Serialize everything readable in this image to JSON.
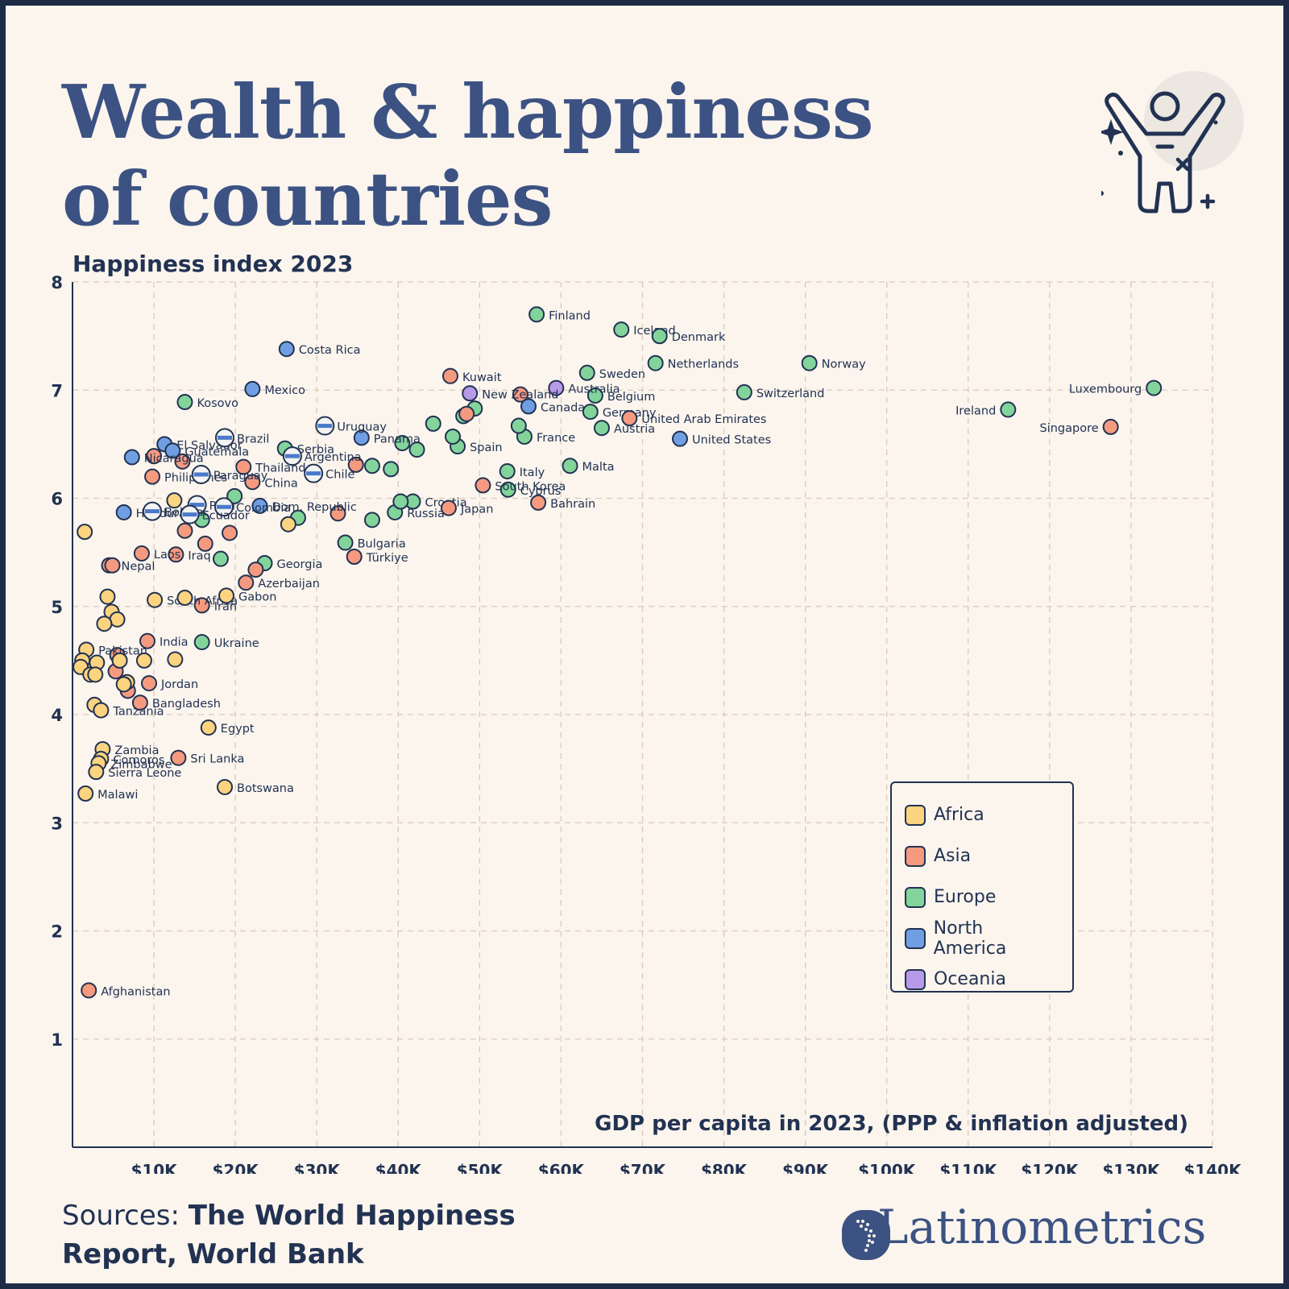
{
  "header": {
    "title_line1": "Wealth & happiness",
    "title_line2": "of countries"
  },
  "footer": {
    "sources_prefix": "Sources:",
    "sources_line1": "The World Happiness",
    "sources_line2": "Report, World Bank",
    "brand": "Latinometrics"
  },
  "icons": {
    "hero": "celebrating-person-icon",
    "logo": "latin-america-map-icon"
  },
  "colors": {
    "Africa": "#fcd37f",
    "Asia": "#f59a7f",
    "Europe": "#82d49b",
    "North America": "#6f9fe2",
    "Oceania": "#b79ae8",
    "outline": "#223252",
    "title": "#3c5283"
  },
  "chart_data": {
    "type": "scatter",
    "ylabel": "Happiness index 2023",
    "xlabel": "GDP per capita in 2023, (PPP & inflation adjusted)",
    "xlim": [
      0,
      140000
    ],
    "ylim": [
      0,
      8
    ],
    "xticks": [
      10000,
      20000,
      30000,
      40000,
      50000,
      60000,
      70000,
      80000,
      90000,
      100000,
      110000,
      120000,
      130000,
      140000
    ],
    "xtick_labels": [
      "$10K",
      "$20K",
      "$30K",
      "$40K",
      "$50K",
      "$60K",
      "$70K",
      "$80K",
      "$90K",
      "$100K",
      "$110K",
      "$120K",
      "$130K",
      "$140K"
    ],
    "yticks": [
      1,
      2,
      3,
      4,
      5,
      6,
      7,
      8
    ],
    "ytick_labels": [
      "1",
      "2",
      "3",
      "4",
      "5",
      "6",
      "7",
      "8"
    ],
    "grid": true,
    "legend_position": "bottom-right",
    "legend": [
      "Africa",
      "Asia",
      "Europe",
      "North America",
      "Oceania"
    ],
    "points": [
      {
        "label": "Finland",
        "x": 57000,
        "y": 7.7,
        "region": "Europe"
      },
      {
        "label": "Iceland",
        "x": 67400,
        "y": 7.56,
        "region": "Europe"
      },
      {
        "label": "Denmark",
        "x": 72100,
        "y": 7.5,
        "region": "Europe"
      },
      {
        "label": "Netherlands",
        "x": 71600,
        "y": 7.25,
        "region": "Europe"
      },
      {
        "label": "Norway",
        "x": 90500,
        "y": 7.25,
        "region": "Europe"
      },
      {
        "label": "Sweden",
        "x": 63200,
        "y": 7.16,
        "region": "Europe"
      },
      {
        "label": "Switzerland",
        "x": 82500,
        "y": 6.98,
        "region": "Europe"
      },
      {
        "label": "Luxembourg",
        "x": 132800,
        "y": 7.02,
        "region": "Europe"
      },
      {
        "label": "Belgium",
        "x": 64200,
        "y": 6.95,
        "region": "Europe"
      },
      {
        "label": "Germany",
        "x": 63600,
        "y": 6.8,
        "region": "Europe"
      },
      {
        "label": "Ireland",
        "x": 114900,
        "y": 6.82,
        "region": "Europe"
      },
      {
        "label": "Austria",
        "x": 65000,
        "y": 6.65,
        "region": "Europe"
      },
      {
        "label": "France",
        "x": 55500,
        "y": 6.57,
        "region": "Europe"
      },
      {
        "label": "Spain",
        "x": 47300,
        "y": 6.48,
        "region": "Europe"
      },
      {
        "label": "Italy",
        "x": 53400,
        "y": 6.25,
        "region": "Europe"
      },
      {
        "label": "Malta",
        "x": 61100,
        "y": 6.3,
        "region": "Europe"
      },
      {
        "label": "Cyprus",
        "x": 53500,
        "y": 6.08,
        "region": "Europe"
      },
      {
        "label": "Croatia",
        "x": 41800,
        "y": 5.97,
        "region": "Europe"
      },
      {
        "label": "Russia",
        "x": 39600,
        "y": 5.87,
        "region": "Europe"
      },
      {
        "label": "Bulgaria",
        "x": 33500,
        "y": 5.59,
        "region": "Europe"
      },
      {
        "label": "Serbia",
        "x": 26100,
        "y": 6.46,
        "region": "Europe"
      },
      {
        "label": "Kosovo",
        "x": 13800,
        "y": 6.89,
        "region": "Europe"
      },
      {
        "label": "Georgia",
        "x": 23600,
        "y": 5.4,
        "region": "Europe"
      },
      {
        "label": "Ukraine",
        "x": 15900,
        "y": 4.67,
        "region": "Europe"
      },
      {
        "label": "",
        "x": 44300,
        "y": 6.69,
        "region": "Europe"
      },
      {
        "label": "",
        "x": 46700,
        "y": 6.57,
        "region": "Europe"
      },
      {
        "label": "",
        "x": 48000,
        "y": 6.76,
        "region": "Europe"
      },
      {
        "label": "",
        "x": 49400,
        "y": 6.83,
        "region": "Europe"
      },
      {
        "label": "",
        "x": 54800,
        "y": 6.67,
        "region": "Europe"
      },
      {
        "label": "",
        "x": 40500,
        "y": 6.51,
        "region": "Europe"
      },
      {
        "label": "",
        "x": 42300,
        "y": 6.45,
        "region": "Europe"
      },
      {
        "label": "",
        "x": 36800,
        "y": 6.3,
        "region": "Europe"
      },
      {
        "label": "",
        "x": 39100,
        "y": 6.27,
        "region": "Europe"
      },
      {
        "label": "",
        "x": 40300,
        "y": 5.97,
        "region": "Europe"
      },
      {
        "label": "",
        "x": 36800,
        "y": 5.8,
        "region": "Europe"
      },
      {
        "label": "",
        "x": 27700,
        "y": 5.82,
        "region": "Europe"
      },
      {
        "label": "",
        "x": 19900,
        "y": 6.02,
        "region": "Europe"
      },
      {
        "label": "",
        "x": 15900,
        "y": 5.8,
        "region": "Europe"
      },
      {
        "label": "",
        "x": 18200,
        "y": 5.44,
        "region": "Europe"
      },
      {
        "label": "Singapore",
        "x": 127500,
        "y": 6.66,
        "region": "Asia"
      },
      {
        "label": "United Arab Emirates",
        "x": 68400,
        "y": 6.74,
        "region": "Asia"
      },
      {
        "label": "Kuwait",
        "x": 46400,
        "y": 7.13,
        "region": "Asia"
      },
      {
        "label": "",
        "x": 55000,
        "y": 6.96,
        "region": "Asia"
      },
      {
        "label": "",
        "x": 48400,
        "y": 6.78,
        "region": "Asia"
      },
      {
        "label": "South Korea",
        "x": 50400,
        "y": 6.12,
        "region": "Asia"
      },
      {
        "label": "Bahrain",
        "x": 57200,
        "y": 5.96,
        "region": "Asia"
      },
      {
        "label": "Japan",
        "x": 46200,
        "y": 5.91,
        "region": "Asia"
      },
      {
        "label": "",
        "x": 34800,
        "y": 6.31,
        "region": "Asia"
      },
      {
        "label": "",
        "x": 32600,
        "y": 5.86,
        "region": "Asia"
      },
      {
        "label": "Türkiye",
        "x": 34600,
        "y": 5.46,
        "region": "Asia"
      },
      {
        "label": "Thailand",
        "x": 21000,
        "y": 6.29,
        "region": "Asia"
      },
      {
        "label": "China",
        "x": 22100,
        "y": 6.15,
        "region": "Asia"
      },
      {
        "label": "Azerbaijan",
        "x": 21300,
        "y": 5.22,
        "region": "Asia"
      },
      {
        "label": "",
        "x": 22500,
        "y": 5.34,
        "region": "Asia"
      },
      {
        "label": "",
        "x": 19300,
        "y": 5.68,
        "region": "Asia"
      },
      {
        "label": "",
        "x": 16300,
        "y": 5.58,
        "region": "Asia"
      },
      {
        "label": "",
        "x": 13800,
        "y": 5.7,
        "region": "Asia"
      },
      {
        "label": "Iraq",
        "x": 12700,
        "y": 5.48,
        "region": "Asia"
      },
      {
        "label": "Iran",
        "x": 15900,
        "y": 5.01,
        "region": "Asia"
      },
      {
        "label": "",
        "x": 13500,
        "y": 6.34,
        "region": "Asia"
      },
      {
        "label": "",
        "x": 10000,
        "y": 6.39,
        "region": "Asia"
      },
      {
        "label": "Philippines",
        "x": 9800,
        "y": 6.2,
        "region": "Asia"
      },
      {
        "label": "Laos",
        "x": 8500,
        "y": 5.49,
        "region": "Asia"
      },
      {
        "label": "Nepal",
        "x": 4500,
        "y": 5.38,
        "region": "Asia"
      },
      {
        "label": "",
        "x": 4900,
        "y": 5.38,
        "region": "Asia"
      },
      {
        "label": "India",
        "x": 9200,
        "y": 4.68,
        "region": "Asia"
      },
      {
        "label": "",
        "x": 5500,
        "y": 4.55,
        "region": "Asia"
      },
      {
        "label": "",
        "x": 5300,
        "y": 4.4,
        "region": "Asia"
      },
      {
        "label": "Jordan",
        "x": 9400,
        "y": 4.29,
        "region": "Asia"
      },
      {
        "label": "",
        "x": 6800,
        "y": 4.22,
        "region": "Asia"
      },
      {
        "label": "Bangladesh",
        "x": 8300,
        "y": 4.11,
        "region": "Asia"
      },
      {
        "label": "Sri Lanka",
        "x": 13000,
        "y": 3.6,
        "region": "Asia"
      },
      {
        "label": "Afghanistan",
        "x": 2000,
        "y": 1.45,
        "region": "Asia"
      },
      {
        "label": "United States",
        "x": 74600,
        "y": 6.55,
        "region": "North America"
      },
      {
        "label": "Canada",
        "x": 56000,
        "y": 6.85,
        "region": "North America"
      },
      {
        "label": "Costa Rica",
        "x": 26300,
        "y": 7.38,
        "region": "North America"
      },
      {
        "label": "Mexico",
        "x": 22100,
        "y": 7.01,
        "region": "North America"
      },
      {
        "label": "Panama",
        "x": 35500,
        "y": 6.56,
        "region": "North America"
      },
      {
        "label": "El Salvador",
        "x": 11300,
        "y": 6.5,
        "region": "North America"
      },
      {
        "label": "Guatemala",
        "x": 12300,
        "y": 6.44,
        "region": "North America"
      },
      {
        "label": "Nicaragua",
        "x": 7300,
        "y": 6.38,
        "region": "North America"
      },
      {
        "label": "Dom. Republic",
        "x": 23000,
        "y": 5.93,
        "region": "North America"
      },
      {
        "label": "Honduras",
        "x": 6300,
        "y": 5.87,
        "region": "North America"
      },
      {
        "label": "Australia",
        "x": 59400,
        "y": 7.02,
        "region": "Oceania"
      },
      {
        "label": "New Zealand",
        "x": 48800,
        "y": 6.97,
        "region": "Oceania"
      },
      {
        "label": "Uruguay",
        "x": 31000,
        "y": 6.67,
        "region": "Latin America"
      },
      {
        "label": "Brazil",
        "x": 18700,
        "y": 6.56,
        "region": "Latin America"
      },
      {
        "label": "Argentina",
        "x": 27000,
        "y": 6.39,
        "region": "Latin America"
      },
      {
        "label": "Paraguay",
        "x": 15800,
        "y": 6.22,
        "region": "Latin America"
      },
      {
        "label": "Chile",
        "x": 29600,
        "y": 6.23,
        "region": "Latin America"
      },
      {
        "label": "Peru",
        "x": 15300,
        "y": 5.94,
        "region": "Latin America"
      },
      {
        "label": "Colombia",
        "x": 18600,
        "y": 5.92,
        "region": "Latin America"
      },
      {
        "label": "Bolivia",
        "x": 9800,
        "y": 5.88,
        "region": "Latin America"
      },
      {
        "label": "Ecuador",
        "x": 14400,
        "y": 5.85,
        "region": "Latin America"
      },
      {
        "label": "South Africa",
        "x": 10100,
        "y": 5.06,
        "region": "Africa"
      },
      {
        "label": "Gabon",
        "x": 18900,
        "y": 5.1,
        "region": "Africa"
      },
      {
        "label": "",
        "x": 13800,
        "y": 5.08,
        "region": "Africa"
      },
      {
        "label": "",
        "x": 12500,
        "y": 5.98,
        "region": "Africa"
      },
      {
        "label": "",
        "x": 26500,
        "y": 5.76,
        "region": "Africa"
      },
      {
        "label": "",
        "x": 1500,
        "y": 5.69,
        "region": "Africa"
      },
      {
        "label": "",
        "x": 4300,
        "y": 5.09,
        "region": "Africa"
      },
      {
        "label": "",
        "x": 4800,
        "y": 4.95,
        "region": "Africa"
      },
      {
        "label": "",
        "x": 5500,
        "y": 4.88,
        "region": "Africa"
      },
      {
        "label": "",
        "x": 3900,
        "y": 4.84,
        "region": "Africa"
      },
      {
        "label": "Pakistan",
        "x": 1700,
        "y": 4.6,
        "region": "Africa"
      },
      {
        "label": "",
        "x": 1200,
        "y": 4.5,
        "region": "Africa"
      },
      {
        "label": "",
        "x": 1000,
        "y": 4.44,
        "region": "Africa"
      },
      {
        "label": "",
        "x": 2200,
        "y": 4.37,
        "region": "Africa"
      },
      {
        "label": "",
        "x": 3000,
        "y": 4.48,
        "region": "Africa"
      },
      {
        "label": "",
        "x": 2800,
        "y": 4.37,
        "region": "Africa"
      },
      {
        "label": "",
        "x": 5800,
        "y": 4.5,
        "region": "Africa"
      },
      {
        "label": "",
        "x": 6700,
        "y": 4.3,
        "region": "Africa"
      },
      {
        "label": "",
        "x": 6300,
        "y": 4.28,
        "region": "Africa"
      },
      {
        "label": "",
        "x": 8800,
        "y": 4.5,
        "region": "Africa"
      },
      {
        "label": "",
        "x": 12600,
        "y": 4.51,
        "region": "Africa"
      },
      {
        "label": "",
        "x": 2700,
        "y": 4.09,
        "region": "Africa"
      },
      {
        "label": "Tanzania",
        "x": 3500,
        "y": 4.04,
        "region": "Africa"
      },
      {
        "label": "Egypt",
        "x": 16700,
        "y": 3.88,
        "region": "Africa"
      },
      {
        "label": "Zambia",
        "x": 3700,
        "y": 3.68,
        "region": "Africa"
      },
      {
        "label": "Comoros",
        "x": 3500,
        "y": 3.59,
        "region": "Africa"
      },
      {
        "label": "Zimbabwe",
        "x": 3200,
        "y": 3.55,
        "region": "Africa"
      },
      {
        "label": "Sierra Leone",
        "x": 2900,
        "y": 3.47,
        "region": "Africa"
      },
      {
        "label": "Botswana",
        "x": 18700,
        "y": 3.33,
        "region": "Africa"
      },
      {
        "label": "Malawi",
        "x": 1600,
        "y": 3.27,
        "region": "Africa"
      }
    ]
  }
}
